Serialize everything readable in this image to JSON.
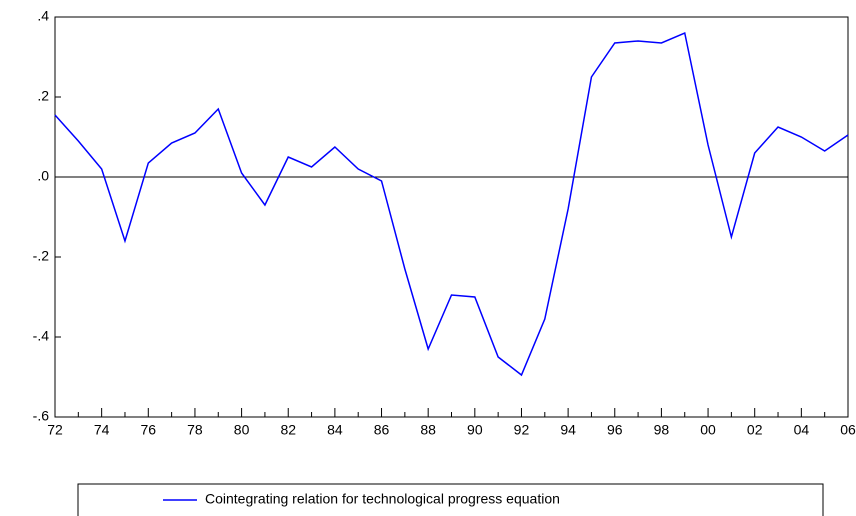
{
  "chart_data": {
    "type": "line",
    "categories": [
      "72",
      null,
      "74",
      null,
      "76",
      null,
      "78",
      null,
      "80",
      null,
      "82",
      null,
      "84",
      null,
      "86",
      null,
      "88",
      null,
      "90",
      null,
      "92",
      null,
      "94",
      null,
      "96",
      null,
      "98",
      null,
      "00",
      null,
      "02",
      null,
      "04",
      null,
      "06"
    ],
    "series": [
      {
        "name": "Cointegrating relation for technological progress equation",
        "color": "#0000ff",
        "values": [
          0.155,
          0.09,
          0.02,
          -0.16,
          0.035,
          0.085,
          0.11,
          0.17,
          0.01,
          -0.07,
          0.05,
          0.025,
          0.075,
          0.02,
          -0.01,
          -0.23,
          -0.43,
          -0.295,
          -0.3,
          -0.45,
          -0.495,
          -0.355,
          -0.08,
          0.25,
          0.335,
          0.34,
          0.335,
          0.36,
          0.08,
          -0.15,
          0.06,
          0.125,
          0.1,
          0.065,
          0.105
        ]
      }
    ],
    "ylim": [
      -0.6,
      0.4
    ],
    "yticks": [
      {
        "value": -0.6,
        "label": "-.6"
      },
      {
        "value": -0.4,
        "label": "-.4"
      },
      {
        "value": -0.2,
        "label": "-.2"
      },
      {
        "value": 0,
        "label": ".0"
      },
      {
        "value": 0.2,
        "label": ".2"
      },
      {
        "value": 0.4,
        "label": ".4"
      }
    ],
    "legend": "bottom"
  }
}
